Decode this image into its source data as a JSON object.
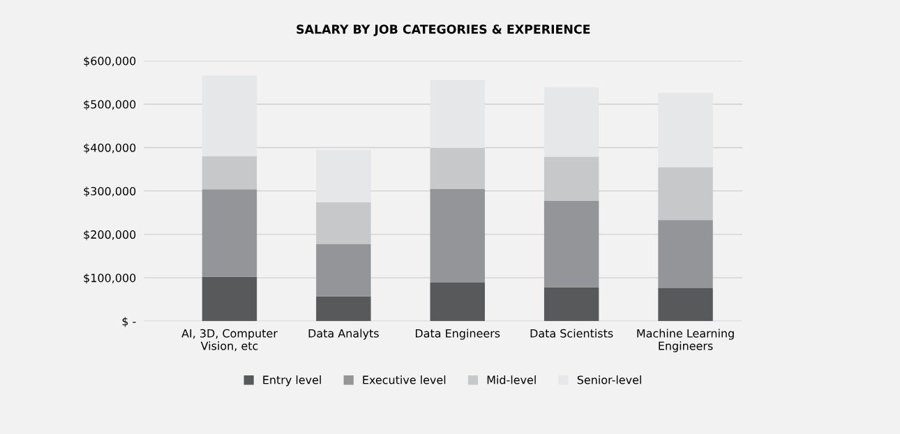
{
  "chart_data": {
    "type": "bar",
    "title": "SALARY BY JOB CATEGORIES & EXPERIENCE",
    "stacked": true,
    "categories": [
      "AI, 3D, Computer\nVision, etc",
      "Data Analyts",
      "Data Engineers",
      "Data Scientists",
      "Machine Learning\nEngineers"
    ],
    "series": [
      {
        "name": "Entry level",
        "color": "#58595b",
        "values": [
          102000,
          57000,
          89000,
          78000,
          76000
        ]
      },
      {
        "name": "Executive level",
        "color": "#939598",
        "values": [
          202000,
          121000,
          216000,
          199000,
          157000
        ]
      },
      {
        "name": "Mid-level",
        "color": "#c7c8ca",
        "values": [
          76000,
          96000,
          94000,
          102000,
          122000
        ]
      },
      {
        "name": "Senior-level",
        "color": "#e6e7e8",
        "values": [
          186000,
          121000,
          157000,
          160000,
          171000
        ]
      }
    ],
    "ylim": [
      0,
      600000
    ],
    "yticks": [
      {
        "value": 0,
        "label": "$ -"
      },
      {
        "value": 100000,
        "label": "$100,000"
      },
      {
        "value": 200000,
        "label": "$200,000"
      },
      {
        "value": 300000,
        "label": "$300,000"
      },
      {
        "value": 400000,
        "label": "$400,000"
      },
      {
        "value": 500000,
        "label": "$500,000"
      },
      {
        "value": 600000,
        "label": "$600,000"
      }
    ],
    "grid": "y",
    "legend": "bottom"
  }
}
